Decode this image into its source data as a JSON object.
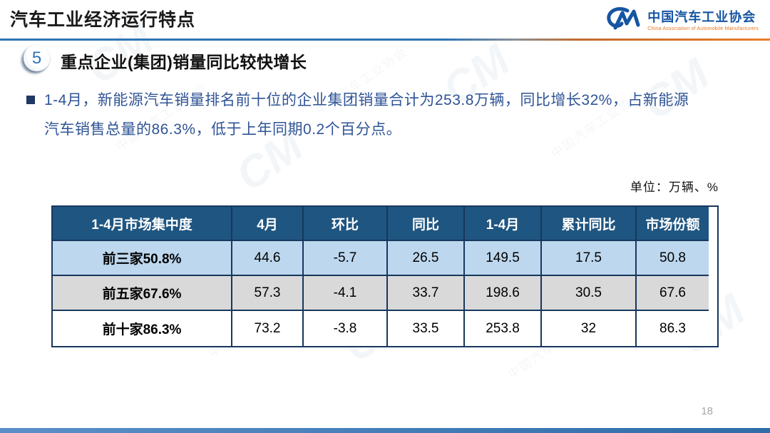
{
  "slide": {
    "title": "汽车工业经济运行特点",
    "page_number": "18"
  },
  "logo": {
    "mark": "CM",
    "name_cn": "中国汽车工业协会",
    "name_en": "China Association of Automobile Manufacturers"
  },
  "section": {
    "number": "5",
    "heading": "重点企业(集团)销量同比较快增长"
  },
  "bullet": {
    "marker": "■",
    "lines": [
      "1-4月，新能源汽车销量排名前十位的企业集团销量合计为253.8万辆，同比增长32%，占新能源",
      "汽车销售总量的86.3%，低于上年同期0.2个百分点。"
    ]
  },
  "table": {
    "unit_label": "单位：万辆、%",
    "headers": [
      "1-4月市场集中度",
      "4月",
      "环比",
      "同比",
      "1-4月",
      "累计同比",
      "市场份额"
    ],
    "rows": [
      {
        "label": "前三家50.8%",
        "values": [
          "44.6",
          "-5.7",
          "26.5",
          "149.5",
          "17.5",
          "50.8"
        ]
      },
      {
        "label": "前五家67.6%",
        "values": [
          "57.3",
          "-4.1",
          "33.7",
          "198.6",
          "30.5",
          "67.6"
        ]
      },
      {
        "label": "前十家86.3%",
        "values": [
          "73.2",
          "-3.8",
          "33.5",
          "253.8",
          "32",
          "86.3"
        ]
      }
    ]
  },
  "watermark": {
    "text": "中国汽车工业协会",
    "glyph": "CM"
  },
  "colors": {
    "header_bg": "#1F5581",
    "row_blue_bg": "#BDD7EE",
    "row_gray_bg": "#D9D9D9",
    "table_border": "#17375E",
    "accent_blue": "#2E75B6",
    "accent_orange": "#E87D2B",
    "body_text_blue": "#2F5496",
    "logo_blue": "#1655A2",
    "logo_orange": "#E87722"
  }
}
